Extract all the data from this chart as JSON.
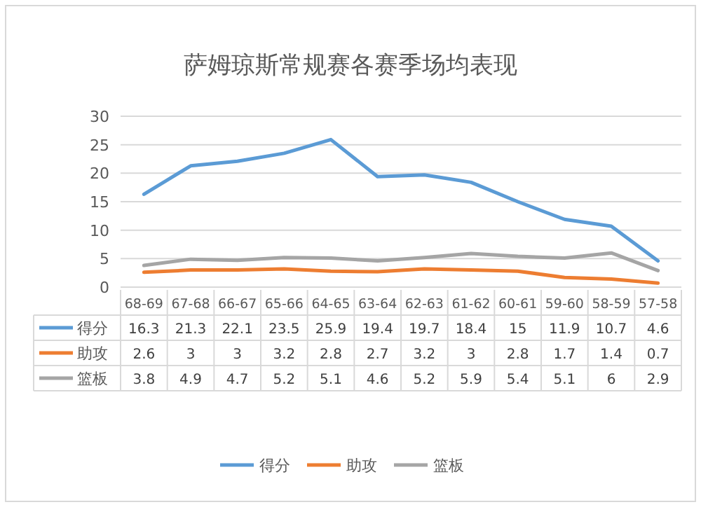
{
  "chart_data": {
    "type": "line",
    "title": "萨姆琼斯常规赛各赛季场均表现",
    "categories": [
      "68-69",
      "67-68",
      "66-67",
      "65-66",
      "64-65",
      "63-64",
      "62-63",
      "61-62",
      "60-61",
      "59-60",
      "58-59",
      "57-58"
    ],
    "series": [
      {
        "name": "得分",
        "color": "#5b9bd5",
        "values": [
          16.3,
          21.3,
          22.1,
          23.5,
          25.9,
          19.4,
          19.7,
          18.4,
          15,
          11.9,
          10.7,
          4.6
        ]
      },
      {
        "name": "助攻",
        "color": "#ed7d31",
        "values": [
          2.6,
          3,
          3,
          3.2,
          2.8,
          2.7,
          3.2,
          3,
          2.8,
          1.7,
          1.4,
          0.7
        ]
      },
      {
        "name": "篮板",
        "color": "#a5a5a5",
        "values": [
          3.8,
          4.9,
          4.7,
          5.2,
          5.1,
          4.6,
          5.2,
          5.9,
          5.4,
          5.1,
          6,
          2.9
        ]
      }
    ],
    "ylim": [
      0,
      30
    ],
    "yticks": [
      0,
      5,
      10,
      15,
      20,
      25,
      30
    ],
    "grid": "y",
    "legend": "bottom",
    "data_labels": true
  }
}
